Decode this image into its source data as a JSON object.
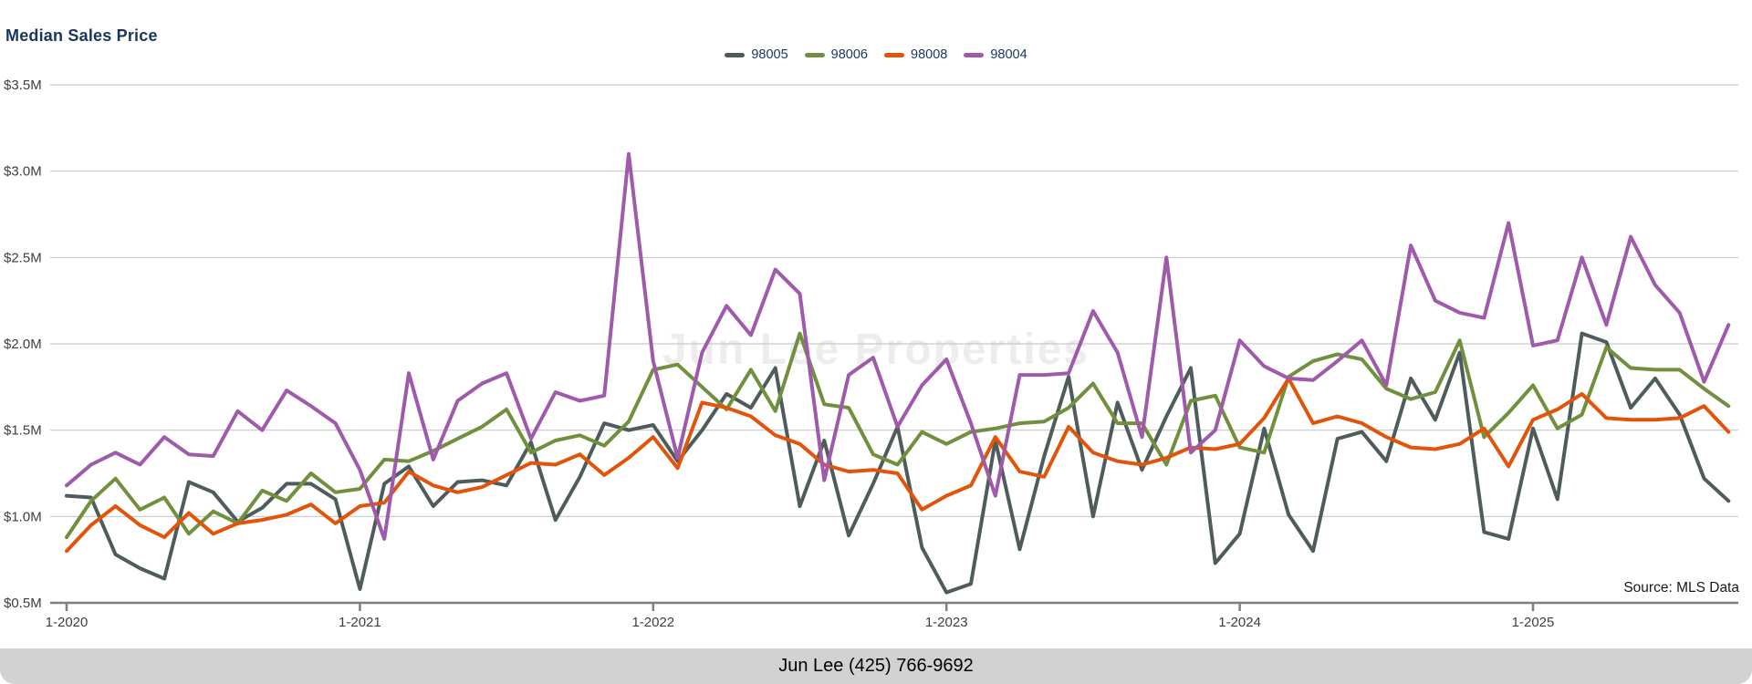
{
  "header": {
    "title": "Median Sales Price"
  },
  "watermark": "Jun Lee Properties",
  "source_label": "Source: MLS Data",
  "footer": {
    "contact": "Jun Lee (425) 766-9692"
  },
  "colors": {
    "title_text": "#17375e",
    "legend_text": "#17375e",
    "axis_text": "#3f3f3f",
    "gridline": "#c9c9c9",
    "axis_line": "#7f7f7f",
    "watermark": "#ededed",
    "footer_bg": "#d2d2d2",
    "footer_text": "#000000"
  },
  "chart_data": {
    "type": "line",
    "title": "Median Sales Price",
    "x_unit": "month",
    "x_start": "1-2020",
    "x_end": "9-2025",
    "grid": true,
    "legend_position": "top-center",
    "ylim": [
      0.5,
      3.5
    ],
    "y_ticks": [
      {
        "label": "$3.5M",
        "value": 3.5
      },
      {
        "label": "$3.0M",
        "value": 3.0
      },
      {
        "label": "$2.5M",
        "value": 2.5
      },
      {
        "label": "$2.0M",
        "value": 2.0
      },
      {
        "label": "$1.5M",
        "value": 1.5
      },
      {
        "label": "$1.0M",
        "value": 1.0
      },
      {
        "label": "$0.5M",
        "value": 0.5
      }
    ],
    "x_ticks": [
      {
        "label": "1-2020",
        "month_index": 0
      },
      {
        "label": "1-2021",
        "month_index": 12
      },
      {
        "label": "1-2022",
        "month_index": 24
      },
      {
        "label": "1-2023",
        "month_index": 36
      },
      {
        "label": "1-2024",
        "month_index": 48
      },
      {
        "label": "1-2025",
        "month_index": 60
      }
    ],
    "series": [
      {
        "name": "98005",
        "color": "#4e5d5c",
        "values": [
          1.12,
          1.11,
          0.78,
          0.7,
          0.64,
          1.2,
          1.14,
          0.97,
          1.05,
          1.19,
          1.19,
          1.1,
          0.58,
          1.19,
          1.29,
          1.06,
          1.2,
          1.21,
          1.18,
          1.43,
          0.98,
          1.23,
          1.54,
          1.5,
          1.53,
          1.32,
          1.5,
          1.71,
          1.63,
          1.86,
          1.06,
          1.44,
          0.89,
          1.19,
          1.52,
          0.82,
          0.56,
          0.61,
          1.44,
          0.81,
          1.35,
          1.81,
          1.0,
          1.66,
          1.27,
          1.58,
          1.86,
          0.73,
          0.9,
          1.51,
          1.01,
          0.8,
          1.45,
          1.49,
          1.32,
          1.8,
          1.56,
          1.95,
          0.91,
          0.87,
          1.51,
          1.1,
          2.06,
          2.01,
          1.63,
          1.8,
          1.59,
          1.22,
          1.09
        ]
      },
      {
        "name": "98006",
        "color": "#71903e",
        "values": [
          0.88,
          1.09,
          1.22,
          1.04,
          1.11,
          0.9,
          1.03,
          0.96,
          1.15,
          1.09,
          1.25,
          1.14,
          1.16,
          1.33,
          1.32,
          1.38,
          1.45,
          1.52,
          1.62,
          1.37,
          1.44,
          1.47,
          1.41,
          1.55,
          1.85,
          1.88,
          1.75,
          1.62,
          1.85,
          1.61,
          2.06,
          1.65,
          1.63,
          1.36,
          1.3,
          1.49,
          1.42,
          1.49,
          1.51,
          1.54,
          1.55,
          1.63,
          1.77,
          1.54,
          1.54,
          1.3,
          1.67,
          1.7,
          1.4,
          1.37,
          1.81,
          1.9,
          1.94,
          1.91,
          1.74,
          1.68,
          1.72,
          2.02,
          1.46,
          1.6,
          1.76,
          1.51,
          1.59,
          1.98,
          1.86,
          1.85,
          1.85,
          1.74,
          1.64
        ]
      },
      {
        "name": "98008",
        "color": "#e2540a",
        "values": [
          0.8,
          0.95,
          1.06,
          0.95,
          0.88,
          1.02,
          0.9,
          0.96,
          0.98,
          1.01,
          1.07,
          0.96,
          1.06,
          1.08,
          1.26,
          1.18,
          1.14,
          1.17,
          1.24,
          1.31,
          1.3,
          1.36,
          1.24,
          1.34,
          1.46,
          1.28,
          1.66,
          1.63,
          1.58,
          1.47,
          1.42,
          1.3,
          1.26,
          1.27,
          1.25,
          1.04,
          1.12,
          1.18,
          1.46,
          1.26,
          1.23,
          1.52,
          1.37,
          1.32,
          1.3,
          1.34,
          1.4,
          1.39,
          1.42,
          1.57,
          1.8,
          1.54,
          1.58,
          1.54,
          1.46,
          1.4,
          1.39,
          1.42,
          1.51,
          1.29,
          1.56,
          1.62,
          1.71,
          1.57,
          1.56,
          1.56,
          1.57,
          1.64,
          1.49
        ]
      },
      {
        "name": "98004",
        "color": "#a05aab",
        "values": [
          1.18,
          1.3,
          1.37,
          1.3,
          1.46,
          1.36,
          1.35,
          1.61,
          1.5,
          1.73,
          1.64,
          1.54,
          1.27,
          0.87,
          1.83,
          1.33,
          1.67,
          1.77,
          1.83,
          1.45,
          1.72,
          1.67,
          1.7,
          3.1,
          1.9,
          1.34,
          1.95,
          2.22,
          2.05,
          2.43,
          2.29,
          1.21,
          1.82,
          1.92,
          1.52,
          1.76,
          1.91,
          1.54,
          1.12,
          1.82,
          1.82,
          1.83,
          2.19,
          1.95,
          1.46,
          2.5,
          1.37,
          1.5,
          2.02,
          1.87,
          1.8,
          1.79,
          1.9,
          2.02,
          1.76,
          2.57,
          2.25,
          2.18,
          2.15,
          2.7,
          1.99,
          2.02,
          2.5,
          2.11,
          2.62,
          2.34,
          2.18,
          1.78,
          2.11
        ]
      }
    ]
  }
}
